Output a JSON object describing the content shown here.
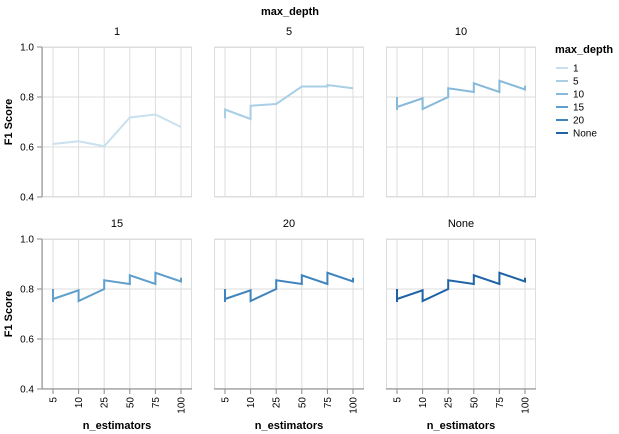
{
  "chart_data": {
    "type": "line",
    "title": "max_depth",
    "xlabel": "n_estimators",
    "ylabel": "F1 Score",
    "categories": [
      "5",
      "10",
      "25",
      "50",
      "75",
      "100"
    ],
    "ylim": [
      0.4,
      1.0
    ],
    "yticks": [
      "0.4",
      "0.6",
      "0.8",
      "1.0"
    ],
    "legend": {
      "title": "max_depth",
      "position": "right",
      "entries": [
        {
          "label": "1",
          "color": "#c8e0ef"
        },
        {
          "label": "5",
          "color": "#a9cfe6"
        },
        {
          "label": "10",
          "color": "#86b9da"
        },
        {
          "label": "15",
          "color": "#5f9fcc"
        },
        {
          "label": "20",
          "color": "#3f84bd"
        },
        {
          "label": "None",
          "color": "#1f63a6"
        }
      ]
    },
    "facets": [
      {
        "title": "1",
        "color": "#c8e0ef",
        "points": [
          [
            0,
            0.612
          ],
          [
            1,
            0.623
          ],
          [
            2,
            0.603
          ],
          [
            3,
            0.718
          ],
          [
            4,
            0.73
          ],
          [
            5,
            0.68
          ]
        ]
      },
      {
        "title": "5",
        "color": "#a9cfe6",
        "points": [
          [
            0,
            0.715
          ],
          [
            0,
            0.75
          ],
          [
            1,
            0.712
          ],
          [
            1,
            0.765
          ],
          [
            2,
            0.772
          ],
          [
            3,
            0.842
          ],
          [
            4,
            0.842
          ],
          [
            4,
            0.848
          ],
          [
            5,
            0.835
          ]
        ]
      },
      {
        "title": "10",
        "color": "#86b9da",
        "points": [
          [
            0,
            0.8
          ],
          [
            0,
            0.748
          ],
          [
            0,
            0.76
          ],
          [
            1,
            0.795
          ],
          [
            1,
            0.752
          ],
          [
            2,
            0.8
          ],
          [
            2,
            0.835
          ],
          [
            3,
            0.82
          ],
          [
            3,
            0.855
          ],
          [
            4,
            0.82
          ],
          [
            4,
            0.865
          ],
          [
            5,
            0.83
          ],
          [
            5,
            0.845
          ]
        ]
      },
      {
        "title": "15",
        "color": "#5f9fcc",
        "points": [
          [
            0,
            0.8
          ],
          [
            0,
            0.748
          ],
          [
            0,
            0.76
          ],
          [
            1,
            0.795
          ],
          [
            1,
            0.752
          ],
          [
            2,
            0.8
          ],
          [
            2,
            0.835
          ],
          [
            3,
            0.82
          ],
          [
            3,
            0.855
          ],
          [
            4,
            0.82
          ],
          [
            4,
            0.865
          ],
          [
            5,
            0.83
          ],
          [
            5,
            0.845
          ]
        ]
      },
      {
        "title": "20",
        "color": "#3f84bd",
        "points": [
          [
            0,
            0.8
          ],
          [
            0,
            0.748
          ],
          [
            0,
            0.76
          ],
          [
            1,
            0.795
          ],
          [
            1,
            0.752
          ],
          [
            2,
            0.8
          ],
          [
            2,
            0.835
          ],
          [
            3,
            0.82
          ],
          [
            3,
            0.855
          ],
          [
            4,
            0.82
          ],
          [
            4,
            0.865
          ],
          [
            5,
            0.83
          ],
          [
            5,
            0.845
          ]
        ]
      },
      {
        "title": "None",
        "color": "#1f63a6",
        "points": [
          [
            0,
            0.8
          ],
          [
            0,
            0.748
          ],
          [
            0,
            0.76
          ],
          [
            1,
            0.795
          ],
          [
            1,
            0.752
          ],
          [
            2,
            0.8
          ],
          [
            2,
            0.835
          ],
          [
            3,
            0.82
          ],
          [
            3,
            0.855
          ],
          [
            4,
            0.82
          ],
          [
            4,
            0.865
          ],
          [
            5,
            0.83
          ],
          [
            5,
            0.845
          ]
        ]
      }
    ]
  }
}
